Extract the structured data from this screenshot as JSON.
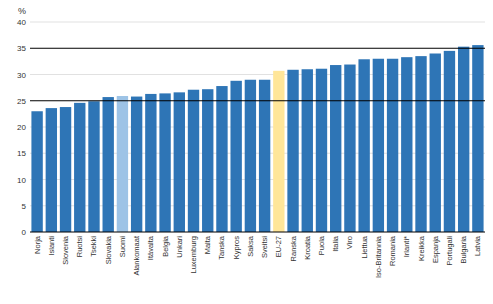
{
  "chart_data": {
    "type": "bar",
    "ylabel": "%",
    "categories": [
      "Norja",
      "Islanti",
      "Slovenia",
      "Ruotsi",
      "Tsekki",
      "Slovakia",
      "Suomi",
      "Alankomaat",
      "Itävalta",
      "Belgia",
      "Unkari",
      "Luxemburg",
      "Malta",
      "Tanska",
      "Kypros",
      "Saksa",
      "Sveitsi",
      "EU-27",
      "Ranska",
      "Kroatia",
      "Puola",
      "Italia",
      "Viro",
      "Liettua",
      "Iso-Britannia",
      "Romania",
      "Irlanti*",
      "Kreikka",
      "Espanja",
      "Portugali",
      "Bulgaria",
      "Latvia"
    ],
    "values": [
      23.0,
      23.6,
      23.8,
      24.6,
      24.9,
      25.7,
      25.9,
      25.8,
      26.3,
      26.4,
      26.6,
      27.1,
      27.2,
      27.8,
      28.8,
      29.0,
      29.0,
      30.7,
      30.9,
      31.0,
      31.1,
      31.8,
      31.9,
      32.9,
      33.0,
      33.0,
      33.3,
      33.5,
      34.0,
      34.5,
      35.3,
      35.6
    ],
    "colors": [
      "#2E75B6",
      "#2E75B6",
      "#2E75B6",
      "#2E75B6",
      "#2E75B6",
      "#2E75B6",
      "#9DC3E6",
      "#2E75B6",
      "#2E75B6",
      "#2E75B6",
      "#2E75B6",
      "#2E75B6",
      "#2E75B6",
      "#2E75B6",
      "#2E75B6",
      "#2E75B6",
      "#2E75B6",
      "#FFE699",
      "#2E75B6",
      "#2E75B6",
      "#2E75B6",
      "#2E75B6",
      "#2E75B6",
      "#2E75B6",
      "#2E75B6",
      "#2E75B6",
      "#2E75B6",
      "#2E75B6",
      "#2E75B6",
      "#2E75B6",
      "#2E75B6",
      "#2E75B6"
    ],
    "ylim": [
      0,
      40
    ],
    "yticks": [
      0,
      5,
      10,
      15,
      20,
      25,
      30,
      35,
      40
    ],
    "reference_lines": [
      25,
      35
    ],
    "grid": true
  }
}
